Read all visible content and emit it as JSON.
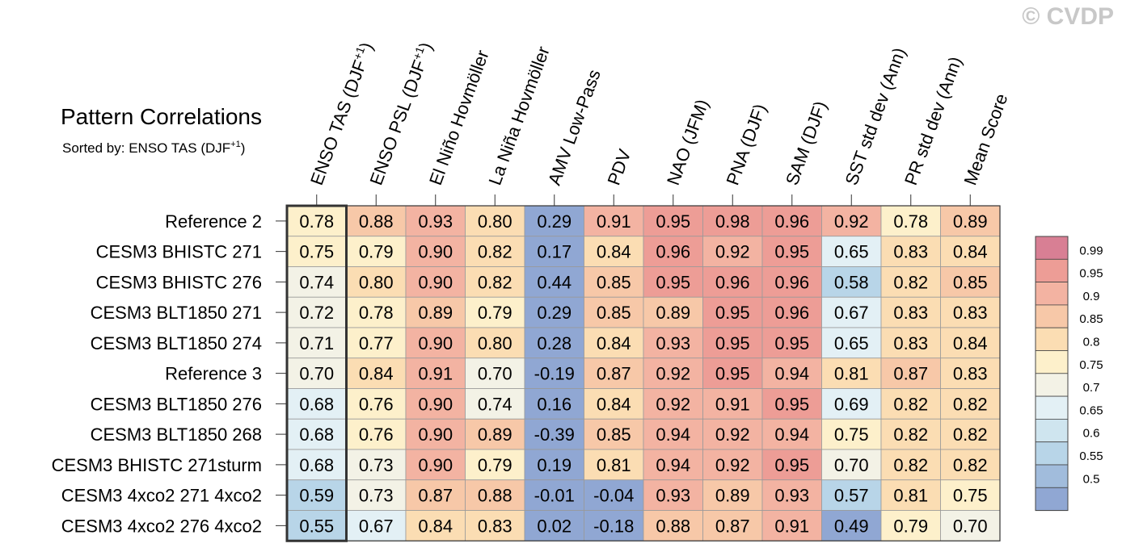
{
  "watermark": "© CVDP",
  "chart_data": {
    "type": "heatmap",
    "title": "Pattern Correlations",
    "subtitle": "Sorted by: ENSO TAS (DJF",
    "subtitle_sup": "+1",
    "subtitle_end": ")",
    "columns": [
      {
        "label": "ENSO TAS (DJF",
        "sup": "+1",
        "end": ")"
      },
      {
        "label": "ENSO PSL (DJF",
        "sup": "+1",
        "end": ")"
      },
      {
        "label": "El Niño Hovmöller"
      },
      {
        "label": "La Niña Hovmöller"
      },
      {
        "label": "AMV Low-Pass"
      },
      {
        "label": "PDV"
      },
      {
        "label": "NAO (JFM)"
      },
      {
        "label": "PNA (DJF)"
      },
      {
        "label": "SAM (DJF)"
      },
      {
        "label": "SST std dev (Ann)"
      },
      {
        "label": "PR std dev (Ann)"
      },
      {
        "label": "Mean Score"
      }
    ],
    "rows": [
      "Reference 2",
      "CESM3 BHISTC 271",
      "CESM3 BHISTC 276",
      "CESM3 BLT1850 271",
      "CESM3 BLT1850 274",
      "Reference 3",
      "CESM3 BLT1850 276",
      "CESM3 BLT1850 268",
      "CESM3 BHISTC 271sturm",
      "CESM3 4xco2 271 4xco2",
      "CESM3 4xco2 276 4xco2"
    ],
    "values": [
      [
        "0.78",
        "0.88",
        "0.93",
        "0.80",
        "0.29",
        "0.91",
        "0.95",
        "0.98",
        "0.96",
        "0.92",
        "0.78",
        "0.89"
      ],
      [
        "0.75",
        "0.79",
        "0.90",
        "0.82",
        "0.17",
        "0.84",
        "0.96",
        "0.92",
        "0.95",
        "0.65",
        "0.83",
        "0.84"
      ],
      [
        "0.74",
        "0.80",
        "0.90",
        "0.82",
        "0.44",
        "0.85",
        "0.95",
        "0.96",
        "0.96",
        "0.58",
        "0.82",
        "0.85"
      ],
      [
        "0.72",
        "0.78",
        "0.89",
        "0.79",
        "0.29",
        "0.85",
        "0.89",
        "0.95",
        "0.96",
        "0.67",
        "0.83",
        "0.83"
      ],
      [
        "0.71",
        "0.77",
        "0.90",
        "0.80",
        "0.28",
        "0.84",
        "0.93",
        "0.95",
        "0.95",
        "0.65",
        "0.83",
        "0.84"
      ],
      [
        "0.70",
        "0.84",
        "0.91",
        "0.70",
        "-0.19",
        "0.87",
        "0.92",
        "0.95",
        "0.94",
        "0.81",
        "0.87",
        "0.83"
      ],
      [
        "0.68",
        "0.76",
        "0.90",
        "0.74",
        "0.16",
        "0.84",
        "0.92",
        "0.91",
        "0.95",
        "0.69",
        "0.82",
        "0.82"
      ],
      [
        "0.68",
        "0.76",
        "0.90",
        "0.89",
        "-0.39",
        "0.85",
        "0.94",
        "0.92",
        "0.94",
        "0.75",
        "0.82",
        "0.82"
      ],
      [
        "0.68",
        "0.73",
        "0.90",
        "0.79",
        "0.19",
        "0.81",
        "0.94",
        "0.92",
        "0.95",
        "0.70",
        "0.82",
        "0.82"
      ],
      [
        "0.59",
        "0.73",
        "0.87",
        "0.88",
        "-0.01",
        "-0.04",
        "0.93",
        "0.89",
        "0.93",
        "0.57",
        "0.81",
        "0.75"
      ],
      [
        "0.55",
        "0.67",
        "0.84",
        "0.83",
        "0.02",
        "-0.18",
        "0.88",
        "0.87",
        "0.91",
        "0.49",
        "0.79",
        "0.70"
      ]
    ],
    "highlight_column": 0,
    "colorbar": {
      "levels": [
        "0.99",
        "0.95",
        "0.9",
        "0.85",
        "0.8",
        "0.75",
        "0.7",
        "0.65",
        "0.6",
        "0.55",
        "0.5"
      ],
      "colors": [
        "#d87f94",
        "#ed9d96",
        "#f3b3a2",
        "#f7c8a8",
        "#fbddb3",
        "#fdf0cb",
        "#f3f2e6",
        "#e3f0f5",
        "#cfe5ef",
        "#b8d5e8",
        "#a1bcdc",
        "#90a7d3"
      ]
    }
  }
}
